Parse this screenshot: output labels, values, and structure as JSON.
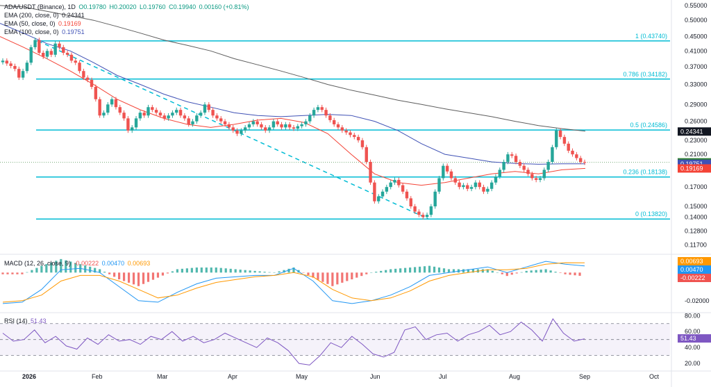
{
  "header": {
    "symbol": "ADA/USDT (Binance), 1D",
    "open": "O0.19780",
    "high": "H0.20020",
    "low": "L0.19760",
    "close": "C0.19940",
    "change": "0.00160 (+0.81%)",
    "ema200_label": "EMA (200, close, 0)",
    "ema200_value": "0.24341",
    "ema50_label": "EMA (50, close, 0)",
    "ema50_value": "0.19169",
    "ema100_label": "EMA (100, close, 0)",
    "ema100_value": "0.19751",
    "macd_label": "MACD (12, 26, close, 9)",
    "macd_hist": "-0.00222",
    "macd_line": "0.00470",
    "macd_signal": "0.00693",
    "rsi_label": "RSI (14)",
    "rsi_value": "51.43"
  },
  "colors": {
    "up": "#26a69a",
    "down": "#ef5350",
    "fib": "#00bcd4",
    "ema200": "#5d5d5d",
    "ema50": "#f44336",
    "ema100": "#3f51b5",
    "macd": "#2196f3",
    "signal": "#ff9800",
    "rsi": "#7e57c2",
    "price_tag": "#2e7d32",
    "ema200_tag": "#131722"
  },
  "chart_data": [
    {
      "type": "candlestick",
      "title": "ADA/USDT (Binance), 1D",
      "x_ticks": [
        "2026",
        "Feb",
        "Mar",
        "Apr",
        "May",
        "Jun",
        "Jul",
        "Aug",
        "Sep",
        "Oct"
      ],
      "y_ticks": [
        "0.55000",
        "0.50000",
        "0.45000",
        "0.41000",
        "0.37000",
        "0.33000",
        "0.29000",
        "0.26000",
        "0.23000",
        "0.21000",
        "0.19000",
        "0.17000",
        "0.15000",
        "0.14000",
        "0.12800",
        "0.11700"
      ],
      "ylim": [
        0.112,
        0.57
      ],
      "y_scale": "log",
      "fib_levels": [
        {
          "label": "1 (0.43740)",
          "value": 0.4374
        },
        {
          "label": "0.786 (0.34182)",
          "value": 0.34182
        },
        {
          "label": "0.5 (0.24586)",
          "value": 0.24586
        },
        {
          "label": "0.236 (0.18138)",
          "value": 0.18138
        },
        {
          "label": "0 (0.13820)",
          "value": 0.1382
        }
      ],
      "price_tags": [
        {
          "label": "0.24341",
          "value": 0.24341,
          "color": "#131722"
        },
        {
          "label": "0.19940",
          "value": 0.1994,
          "color": "#2e7d32"
        },
        {
          "label": "0.19751",
          "value": 0.19751,
          "color": "#3f51b5"
        },
        {
          "label": "0.19169",
          "value": 0.19169,
          "color": "#f44336"
        }
      ],
      "close_series": [
        0.385,
        0.378,
        0.372,
        0.365,
        0.345,
        0.36,
        0.38,
        0.42,
        0.44,
        0.405,
        0.395,
        0.41,
        0.4,
        0.43,
        0.42,
        0.405,
        0.4,
        0.385,
        0.38,
        0.36,
        0.345,
        0.34,
        0.325,
        0.3,
        0.27,
        0.275,
        0.29,
        0.3,
        0.285,
        0.275,
        0.265,
        0.245,
        0.25,
        0.265,
        0.275,
        0.27,
        0.285,
        0.28,
        0.275,
        0.27,
        0.265,
        0.27,
        0.275,
        0.28,
        0.27,
        0.265,
        0.255,
        0.26,
        0.27,
        0.275,
        0.29,
        0.28,
        0.27,
        0.265,
        0.26,
        0.255,
        0.25,
        0.245,
        0.24,
        0.245,
        0.25,
        0.255,
        0.26,
        0.255,
        0.25,
        0.245,
        0.25,
        0.26,
        0.255,
        0.25,
        0.255,
        0.25,
        0.248,
        0.252,
        0.255,
        0.26,
        0.27,
        0.28,
        0.285,
        0.28,
        0.27,
        0.262,
        0.255,
        0.25,
        0.245,
        0.242,
        0.238,
        0.235,
        0.23,
        0.22,
        0.2,
        0.175,
        0.155,
        0.16,
        0.165,
        0.17,
        0.175,
        0.178,
        0.172,
        0.165,
        0.158,
        0.15,
        0.145,
        0.142,
        0.14,
        0.142,
        0.15,
        0.165,
        0.18,
        0.195,
        0.188,
        0.18,
        0.175,
        0.17,
        0.172,
        0.168,
        0.17,
        0.175,
        0.17,
        0.165,
        0.168,
        0.175,
        0.182,
        0.19,
        0.2,
        0.21,
        0.208,
        0.2,
        0.195,
        0.19,
        0.185,
        0.18,
        0.178,
        0.18,
        0.19,
        0.2,
        0.22,
        0.245,
        0.235,
        0.225,
        0.215,
        0.21,
        0.205,
        0.2,
        0.199
      ],
      "ema200": [
        0.55,
        0.545,
        0.53,
        0.515,
        0.5,
        0.48,
        0.46,
        0.44,
        0.425,
        0.41,
        0.39,
        0.375,
        0.36,
        0.345,
        0.33,
        0.318,
        0.308,
        0.298,
        0.29,
        0.282,
        0.275,
        0.268,
        0.26,
        0.253,
        0.248,
        0.244
      ],
      "ema100": [
        0.49,
        0.46,
        0.43,
        0.41,
        0.38,
        0.35,
        0.33,
        0.31,
        0.295,
        0.285,
        0.275,
        0.27,
        0.268,
        0.27,
        0.272,
        0.27,
        0.26,
        0.245,
        0.225,
        0.21,
        0.205,
        0.2,
        0.198,
        0.197,
        0.1975,
        0.1975
      ],
      "ema50": [
        0.45,
        0.42,
        0.39,
        0.36,
        0.33,
        0.3,
        0.28,
        0.265,
        0.255,
        0.25,
        0.255,
        0.262,
        0.265,
        0.258,
        0.24,
        0.21,
        0.185,
        0.175,
        0.172,
        0.175,
        0.18,
        0.185,
        0.188,
        0.185,
        0.19,
        0.1917
      ]
    },
    {
      "type": "line",
      "title": "MACD (12, 26, close, 9)",
      "y_ticks": [
        "-0.02000"
      ],
      "series": [
        {
          "name": "MACD",
          "values": [
            -0.022,
            -0.021,
            -0.012,
            0.002,
            0.003,
            0.0,
            -0.01,
            -0.02,
            -0.021,
            -0.014,
            -0.008,
            -0.004,
            -0.003,
            -0.002,
            -0.002,
            0.003,
            -0.006,
            -0.02,
            -0.022,
            -0.02,
            -0.016,
            -0.01,
            -0.002,
            0.0,
            0.002,
            0.004,
            0.0,
            0.004,
            0.008,
            0.006,
            0.0047
          ]
        },
        {
          "name": "Signal",
          "values": [
            -0.021,
            -0.02,
            -0.016,
            -0.006,
            -0.002,
            -0.002,
            -0.006,
            -0.012,
            -0.018,
            -0.016,
            -0.011,
            -0.007,
            -0.005,
            -0.003,
            -0.002,
            0.0,
            -0.003,
            -0.012,
            -0.018,
            -0.02,
            -0.018,
            -0.013,
            -0.006,
            -0.002,
            0.0,
            0.002,
            0.002,
            0.003,
            0.006,
            0.007,
            0.0069
          ]
        }
      ]
    },
    {
      "type": "line",
      "title": "RSI (14)",
      "y_ticks": [
        "80.00",
        "60.00",
        "40.00",
        "20.00"
      ],
      "ylim": [
        14,
        82
      ],
      "bands": [
        30,
        50,
        70
      ],
      "series": [
        {
          "name": "RSI",
          "values": [
            58,
            48,
            50,
            62,
            46,
            54,
            42,
            38,
            52,
            44,
            56,
            48,
            50,
            44,
            54,
            50,
            60,
            48,
            54,
            46,
            50,
            58,
            52,
            46,
            40,
            52,
            46,
            36,
            20,
            18,
            30,
            46,
            40,
            54,
            44,
            32,
            28,
            34,
            62,
            66,
            50,
            56,
            58,
            48,
            56,
            60,
            68,
            56,
            60,
            72,
            62,
            48,
            76,
            58,
            48,
            51
          ]
        }
      ]
    }
  ],
  "x_axis": [
    "2026",
    "Feb",
    "Mar",
    "Apr",
    "May",
    "Jun",
    "Jul",
    "Aug",
    "Sep",
    "Oct"
  ]
}
